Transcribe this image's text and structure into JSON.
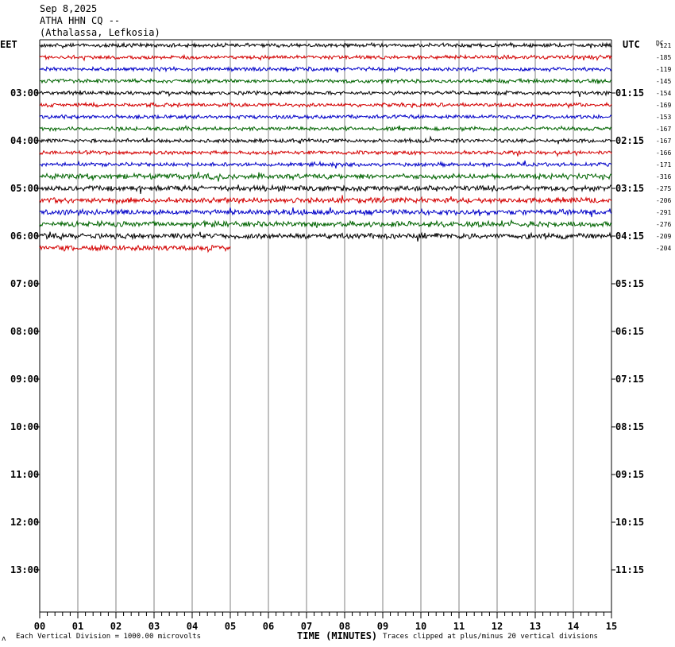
{
  "header": {
    "date": "Sep 8,2025",
    "station": "ATHA HHN CQ --",
    "location": "(Athalassa, Lefkosia)"
  },
  "tz_left": "EET",
  "tz_right": "UTC",
  "dc_header": "DC",
  "footer": {
    "corner_mark": "ʌ",
    "left": "Each Vertical Division = 1000.00 microvolts",
    "xlabel": "TIME (MINUTES)",
    "right": "Traces clipped at plus/minus 20 vertical divisions"
  },
  "colors": {
    "trace_cycle": [
      "#000000",
      "#d40000",
      "#0000c8",
      "#006400"
    ],
    "grid": "#808080"
  },
  "chart_data": {
    "type": "line",
    "xlabel": "TIME (MINUTES)",
    "xlim": [
      0,
      15
    ],
    "x_ticks": [
      "00",
      "01",
      "02",
      "03",
      "04",
      "05",
      "06",
      "07",
      "08",
      "09",
      "10",
      "11",
      "12",
      "13",
      "14",
      "15"
    ],
    "row_interval_minutes": 15,
    "left_hour_labels": [
      "03:00",
      "04:00",
      "05:00",
      "06:00",
      "07:00",
      "08:00",
      "09:00",
      "10:00",
      "11:00",
      "12:00",
      "13:00"
    ],
    "right_hour_labels": [
      "01:15",
      "02:15",
      "03:15",
      "04:15",
      "05:15",
      "06:15",
      "07:15",
      "08:15",
      "09:15",
      "10:15",
      "11:15"
    ],
    "traces": [
      {
        "row": 0,
        "dc": "-121",
        "minutes": 15
      },
      {
        "row": 1,
        "dc": "-185",
        "minutes": 15
      },
      {
        "row": 2,
        "dc": "-119",
        "minutes": 15
      },
      {
        "row": 3,
        "dc": "-145",
        "minutes": 15
      },
      {
        "row": 4,
        "dc": "-154",
        "minutes": 15
      },
      {
        "row": 5,
        "dc": "-169",
        "minutes": 15
      },
      {
        "row": 6,
        "dc": "-153",
        "minutes": 15
      },
      {
        "row": 7,
        "dc": "-167",
        "minutes": 15
      },
      {
        "row": 8,
        "dc": "-167",
        "minutes": 15
      },
      {
        "row": 9,
        "dc": "-166",
        "minutes": 15
      },
      {
        "row": 10,
        "dc": "-171",
        "minutes": 15
      },
      {
        "row": 11,
        "dc": "-316",
        "minutes": 15
      },
      {
        "row": 12,
        "dc": "-275",
        "minutes": 15
      },
      {
        "row": 13,
        "dc": "-206",
        "minutes": 15
      },
      {
        "row": 14,
        "dc": "-291",
        "minutes": 15
      },
      {
        "row": 15,
        "dc": "-276",
        "minutes": 15
      },
      {
        "row": 16,
        "dc": "-209",
        "minutes": 15
      },
      {
        "row": 17,
        "dc": "-204",
        "minutes": 5
      }
    ]
  }
}
